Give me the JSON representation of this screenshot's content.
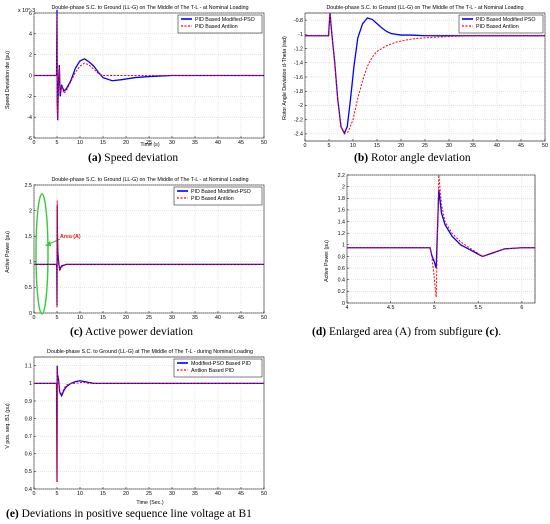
{
  "captions": {
    "a": {
      "letter": "(a)",
      "text": "Speed deviation"
    },
    "b": {
      "letter": "(b)",
      "text": "Rotor angle deviation"
    },
    "c": {
      "letter": "(c)",
      "text": "Active power deviation"
    },
    "d": {
      "letter": "(d)",
      "text": "Enlarged area (A) from subfigure",
      "letter2": "(c)",
      "tail": "."
    },
    "e": {
      "letter": "(e)",
      "text": "Deviations in positive sequence line voltage at B1"
    }
  },
  "chart_data": [
    {
      "id": "a",
      "type": "line",
      "title": "Double-phase S.C. to Ground (LL-G) on The Middle of The T-L - at Nominal Loading",
      "xlabel": "Time (s)",
      "ylabel": "Speed Deviation dw (pu)",
      "xlim": [
        0,
        50
      ],
      "ylim": [
        -6,
        6
      ],
      "xticks": [
        0,
        5,
        10,
        15,
        20,
        25,
        30,
        35,
        40,
        45,
        50
      ],
      "yticks": [
        -6,
        -4,
        -2,
        0,
        2,
        4,
        6
      ],
      "y_exponent": "x 10^-3",
      "grid": true,
      "legend": "top-right",
      "series": [
        {
          "name": "PID Based Modified-PSO",
          "color": "#0000ff",
          "dash": "",
          "x": [
            0,
            4.9,
            5.0,
            5.05,
            5.15,
            5.3,
            5.5,
            5.7,
            6.0,
            6.5,
            7.0,
            8.0,
            9.0,
            10.0,
            11.0,
            12.0,
            13.0,
            14.0,
            15.0,
            17.0,
            19.0,
            22.0,
            25.0,
            30.0,
            40.0,
            50.0
          ],
          "y": [
            0,
            0,
            6.3,
            -2.5,
            -4.3,
            -1.0,
            1.0,
            -2.0,
            -0.9,
            -1.5,
            -1.3,
            -0.5,
            0.7,
            1.4,
            1.6,
            1.3,
            0.9,
            0.3,
            -0.2,
            -0.5,
            -0.4,
            -0.2,
            -0.1,
            0,
            0,
            0
          ]
        },
        {
          "name": "PID Based Antlion",
          "color": "#ff0000",
          "dash": "2,1.5",
          "x": [
            0,
            4.9,
            5.0,
            5.05,
            5.15,
            5.3,
            5.5,
            5.7,
            6.0,
            6.5,
            7.0,
            8.0,
            9.0,
            10.0,
            11.0,
            12.0,
            13.0,
            14.0,
            15.0,
            17.0,
            19.0,
            22.0,
            25.0,
            30.0,
            40.0,
            50.0
          ],
          "y": [
            0,
            0,
            6.0,
            -2.7,
            -4.2,
            -1.2,
            0.8,
            -1.8,
            -1.0,
            -1.7,
            -1.5,
            -0.6,
            0.3,
            0.9,
            1.2,
            1.0,
            0.6,
            0.2,
            0,
            0,
            0,
            0,
            0,
            0,
            0,
            0
          ]
        }
      ]
    },
    {
      "id": "b",
      "type": "line",
      "title": "Double-phase S.C. to Ground (LL-G) on The Middle of The T-L - at Nominal Loading",
      "xlabel": "",
      "ylabel": "Rotor Angle Deviation d-Theta (rad)",
      "xlim": [
        0,
        50
      ],
      "ylim": [
        -2.5,
        -0.7
      ],
      "xticks": [
        0,
        5,
        10,
        15,
        20,
        25,
        30,
        35,
        40,
        45,
        50
      ],
      "yticks": [
        -2.4,
        -2.2,
        -2,
        -1.8,
        -1.6,
        -1.4,
        -1.2,
        -1,
        -0.8
      ],
      "grid": true,
      "legend": "top-right",
      "series": [
        {
          "name": "PID Based Modified PSO",
          "color": "#0000ff",
          "dash": "",
          "x": [
            0,
            4.9,
            5.2,
            5.6,
            6.2,
            6.8,
            7.5,
            8.2,
            8.8,
            9.5,
            10.2,
            11.0,
            12.0,
            13.0,
            14.0,
            15.0,
            16.0,
            17.0,
            18.0,
            20.0,
            22.0,
            25.0,
            30.0,
            35.0,
            40.0,
            50.0
          ],
          "y": [
            -1.02,
            -1.02,
            -0.7,
            -1.0,
            -1.4,
            -1.9,
            -2.3,
            -2.39,
            -2.3,
            -1.9,
            -1.45,
            -1.05,
            -0.85,
            -0.77,
            -0.79,
            -0.85,
            -0.91,
            -0.96,
            -0.99,
            -1.01,
            -1.01,
            -1.02,
            -1.02,
            -1.02,
            -1.02,
            -1.02
          ]
        },
        {
          "name": "PID Based Antlion",
          "color": "#ff0000",
          "dash": "2,1.5",
          "x": [
            0,
            4.9,
            5.2,
            5.6,
            6.2,
            6.8,
            7.5,
            8.2,
            9.0,
            10.0,
            11.0,
            12.0,
            13.0,
            14.0,
            15.0,
            17.0,
            19.0,
            21.0,
            23.0,
            25.0,
            30.0,
            35.0,
            40.0,
            50.0
          ],
          "y": [
            -1.02,
            -1.02,
            -0.7,
            -1.0,
            -1.4,
            -1.9,
            -2.3,
            -2.4,
            -2.37,
            -2.2,
            -1.9,
            -1.65,
            -1.45,
            -1.32,
            -1.24,
            -1.16,
            -1.11,
            -1.08,
            -1.06,
            -1.05,
            -1.03,
            -1.02,
            -1.02,
            -1.02
          ]
        }
      ]
    },
    {
      "id": "c",
      "type": "line",
      "title": "Double-phase S.C. to Ground (LL-G) on The Middle of The T-L - at Nominal Loading",
      "xlabel": "",
      "ylabel": "Active Power (pu)",
      "xlim": [
        0,
        50
      ],
      "ylim": [
        0,
        2.5
      ],
      "xticks": [
        0,
        5,
        10,
        15,
        20,
        25,
        30,
        35,
        40,
        45,
        50
      ],
      "yticks": [
        0,
        0.5,
        1,
        1.5,
        2,
        2.5
      ],
      "grid": true,
      "legend": "top-right",
      "annotation": "Area (A)",
      "series": [
        {
          "name": "PID Based Modified-PSO",
          "color": "#0000ff",
          "dash": "",
          "x": [
            0,
            4.9,
            4.95,
            5.0,
            5.05,
            5.1,
            5.2,
            5.4,
            5.6,
            6.0,
            7.0,
            10.0,
            20.0,
            50.0
          ],
          "y": [
            0.95,
            0.95,
            0.85,
            0.15,
            2.1,
            1.5,
            1.15,
            0.95,
            0.85,
            0.92,
            0.95,
            0.95,
            0.95,
            0.95
          ]
        },
        {
          "name": "PID Based Antlion",
          "color": "#ff0000",
          "dash": "2,1.5",
          "x": [
            0,
            4.9,
            4.95,
            5.0,
            5.05,
            5.1,
            5.2,
            5.4,
            5.6,
            6.0,
            7.0,
            10.0,
            20.0,
            50.0
          ],
          "y": [
            0.95,
            0.95,
            0.8,
            0.1,
            2.2,
            1.6,
            1.2,
            0.97,
            0.82,
            0.9,
            0.95,
            0.95,
            0.95,
            0.95
          ]
        }
      ]
    },
    {
      "id": "d",
      "type": "line",
      "title": "",
      "xlabel": "",
      "ylabel": "Active Power (pu)",
      "xlim": [
        4,
        6.15
      ],
      "ylim": [
        0,
        2.2
      ],
      "xticks": [
        4,
        4.5,
        5,
        5.5,
        6
      ],
      "yticks": [
        0,
        0.2,
        0.4,
        0.6,
        0.8,
        1,
        1.2,
        1.4,
        1.6,
        1.8,
        2,
        2.2
      ],
      "grid": true,
      "series": [
        {
          "name": "",
          "color": "#0000ff",
          "dash": "",
          "x": [
            4,
            4.95,
            4.97,
            5.0,
            5.02,
            5.05,
            5.08,
            5.12,
            5.2,
            5.3,
            5.4,
            5.5,
            5.55,
            5.65,
            5.8,
            6.0,
            6.15
          ],
          "y": [
            0.95,
            0.95,
            0.82,
            0.7,
            0.6,
            1.95,
            1.55,
            1.35,
            1.15,
            1.0,
            0.92,
            0.84,
            0.8,
            0.85,
            0.93,
            0.95,
            0.95
          ]
        },
        {
          "name": "",
          "color": "#ff0000",
          "dash": "2,1.5",
          "x": [
            4,
            4.95,
            4.97,
            5.0,
            5.02,
            5.05,
            5.08,
            5.12,
            5.2,
            5.3,
            5.4,
            5.5,
            5.55,
            5.65,
            5.8,
            6.0,
            6.15
          ],
          "y": [
            0.95,
            0.95,
            0.8,
            0.4,
            0.1,
            2.2,
            1.7,
            1.4,
            1.2,
            1.05,
            0.95,
            0.85,
            0.8,
            0.86,
            0.93,
            0.95,
            0.95
          ]
        }
      ]
    },
    {
      "id": "e",
      "type": "line",
      "title": "Double-phase S.C. to Ground (LL-G) at The Middle of The T-L - during Nominal Loading",
      "xlabel": "Time (Sec.)",
      "ylabel": "V pos. seq. B1 (pu)",
      "xlim": [
        0,
        50
      ],
      "ylim": [
        0.4,
        1.15
      ],
      "xticks": [
        0,
        5,
        10,
        15,
        20,
        25,
        30,
        35,
        40,
        45,
        50
      ],
      "yticks": [
        0.4,
        0.5,
        0.6,
        0.7,
        0.8,
        0.9,
        1,
        1.1
      ],
      "grid": true,
      "legend": "top-right",
      "series": [
        {
          "name": "Modified-PSO Based PID",
          "color": "#0000ff",
          "dash": "",
          "x": [
            0,
            4.9,
            5.0,
            5.05,
            5.1,
            5.3,
            5.6,
            6.0,
            6.5,
            7.0,
            8.0,
            9.0,
            10.0,
            11.0,
            12.0,
            13.0,
            15.0,
            18.0,
            25.0,
            50.0
          ],
          "y": [
            1.0,
            1.0,
            0.44,
            1.1,
            1.05,
            1.03,
            0.95,
            0.93,
            0.96,
            0.98,
            1.0,
            1.01,
            1.015,
            1.01,
            1.005,
            1.0,
            1.0,
            1.0,
            1.0,
            1.0
          ]
        },
        {
          "name": "Antlion Based PID",
          "color": "#ff0000",
          "dash": "2,1.5",
          "x": [
            0,
            4.9,
            5.0,
            5.05,
            5.1,
            5.3,
            5.6,
            6.0,
            6.5,
            7.0,
            8.0,
            9.0,
            10.0,
            11.0,
            12.0,
            13.0,
            15.0,
            18.0,
            25.0,
            50.0
          ],
          "y": [
            1.0,
            1.0,
            0.44,
            1.09,
            1.05,
            1.02,
            0.95,
            0.94,
            0.97,
            0.99,
            1.0,
            1.0,
            1.005,
            1.005,
            1.0,
            1.0,
            1.0,
            1.0,
            1.0,
            1.0
          ]
        }
      ]
    }
  ]
}
